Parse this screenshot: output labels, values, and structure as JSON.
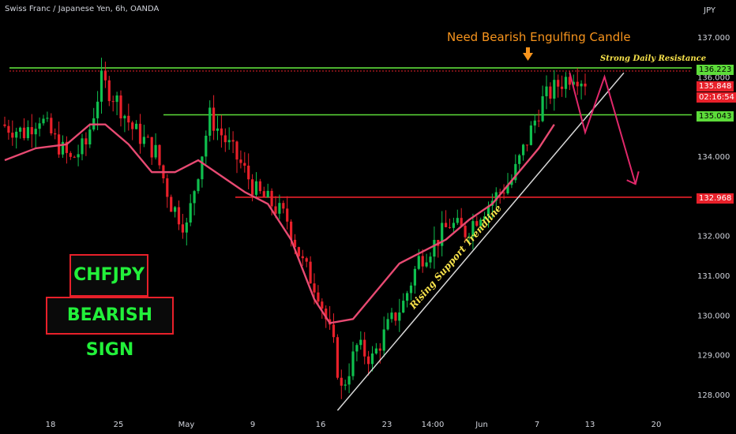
{
  "header": {
    "symbol_title": "Swiss Franc / Japanese Yen, 6h, OANDA",
    "currency": "JPY"
  },
  "annotations": {
    "need_label": "Need Bearish Engulfing Candle",
    "resistance_label": "Strong Daily Resistance",
    "trendline_label": "Rising Support Trendline",
    "box_pair": "CHFJPY",
    "box_signal": "BEARISH SIGN"
  },
  "price_tags": {
    "resistance": "136.223",
    "last_price": "135.848",
    "countdown": "02:16:54",
    "support_mid": "135.043",
    "support_low": "132.968"
  },
  "colors": {
    "background": "#000000",
    "up_candle": "#0fbf4e",
    "down_candle": "#e8202a",
    "green_line": "#5ddc3a",
    "red_line": "#e8202a",
    "ma_line": "#e84a72",
    "arrow": "#e0286a",
    "trendline": "#d8d8d8",
    "text_yellow": "#f6e14a",
    "text_orange": "#f7941d",
    "box_text": "#22f03a"
  },
  "chart_data": {
    "type": "candlestick",
    "yaxis_ticks": [
      137.0,
      136.0,
      135.0,
      134.0,
      133.0,
      132.0,
      131.0,
      130.0,
      129.0,
      128.0
    ],
    "yaxis_tick_labels": [
      "137.000",
      "136.000",
      "135.000",
      "134.000",
      "133.000",
      "132.000",
      "131.000",
      "130.000",
      "129.000",
      "128.000"
    ],
    "ylim": [
      127.5,
      137.5
    ],
    "xaxis_tick_labels": [
      "18",
      "25",
      "May",
      "9",
      "16",
      "23",
      "14:00",
      "Jun",
      "7",
      "13",
      "20"
    ],
    "horizontal_levels": [
      {
        "value": 136.223,
        "color": "green"
      },
      {
        "value": 135.043,
        "color": "green"
      },
      {
        "value": 132.968,
        "color": "red"
      }
    ],
    "price_path": [
      [
        0,
        134.8
      ],
      [
        6,
        134.6
      ],
      [
        10,
        135.0
      ],
      [
        14,
        134.4
      ],
      [
        18,
        133.9
      ],
      [
        22,
        134.3
      ],
      [
        26,
        135.9
      ],
      [
        30,
        135.4
      ],
      [
        34,
        134.7
      ],
      [
        40,
        134.1
      ],
      [
        44,
        132.8
      ],
      [
        48,
        132.2
      ],
      [
        50,
        133.2
      ],
      [
        54,
        135.0
      ],
      [
        58,
        134.4
      ],
      [
        62,
        133.8
      ],
      [
        66,
        133.1
      ],
      [
        70,
        132.8
      ],
      [
        74,
        132.4
      ],
      [
        78,
        131.3
      ],
      [
        82,
        130.6
      ],
      [
        86,
        129.2
      ],
      [
        88,
        128.1
      ],
      [
        92,
        129.2
      ],
      [
        96,
        128.9
      ],
      [
        100,
        129.7
      ],
      [
        104,
        130.3
      ],
      [
        108,
        131.4
      ],
      [
        112,
        131.8
      ],
      [
        116,
        132.3
      ],
      [
        120,
        132.1
      ],
      [
        124,
        132.6
      ],
      [
        128,
        133.0
      ],
      [
        132,
        133.4
      ],
      [
        136,
        134.4
      ],
      [
        140,
        135.4
      ],
      [
        144,
        135.8
      ],
      [
        148,
        136.1
      ],
      [
        151,
        135.9
      ]
    ],
    "moving_average": [
      [
        0,
        133.9
      ],
      [
        8,
        134.2
      ],
      [
        16,
        134.3
      ],
      [
        22,
        134.8
      ],
      [
        26,
        134.8
      ],
      [
        32,
        134.3
      ],
      [
        38,
        133.6
      ],
      [
        44,
        133.6
      ],
      [
        50,
        133.9
      ],
      [
        56,
        133.5
      ],
      [
        62,
        133.1
      ],
      [
        68,
        132.8
      ],
      [
        74,
        131.9
      ],
      [
        80,
        130.4
      ],
      [
        84,
        129.8
      ],
      [
        90,
        129.9
      ],
      [
        96,
        130.6
      ],
      [
        102,
        131.3
      ],
      [
        108,
        131.6
      ],
      [
        114,
        131.9
      ],
      [
        120,
        132.4
      ],
      [
        126,
        132.8
      ],
      [
        132,
        133.5
      ],
      [
        138,
        134.2
      ],
      [
        142,
        134.8
      ]
    ],
    "trendline": {
      "start": [
        86,
        127.6
      ],
      "end": [
        160,
        136.1
      ]
    },
    "projection_arrow": [
      [
        146,
        136.1
      ],
      [
        150,
        134.6
      ],
      [
        155,
        136.0
      ],
      [
        163,
        133.3
      ]
    ],
    "last_price": 135.848
  }
}
